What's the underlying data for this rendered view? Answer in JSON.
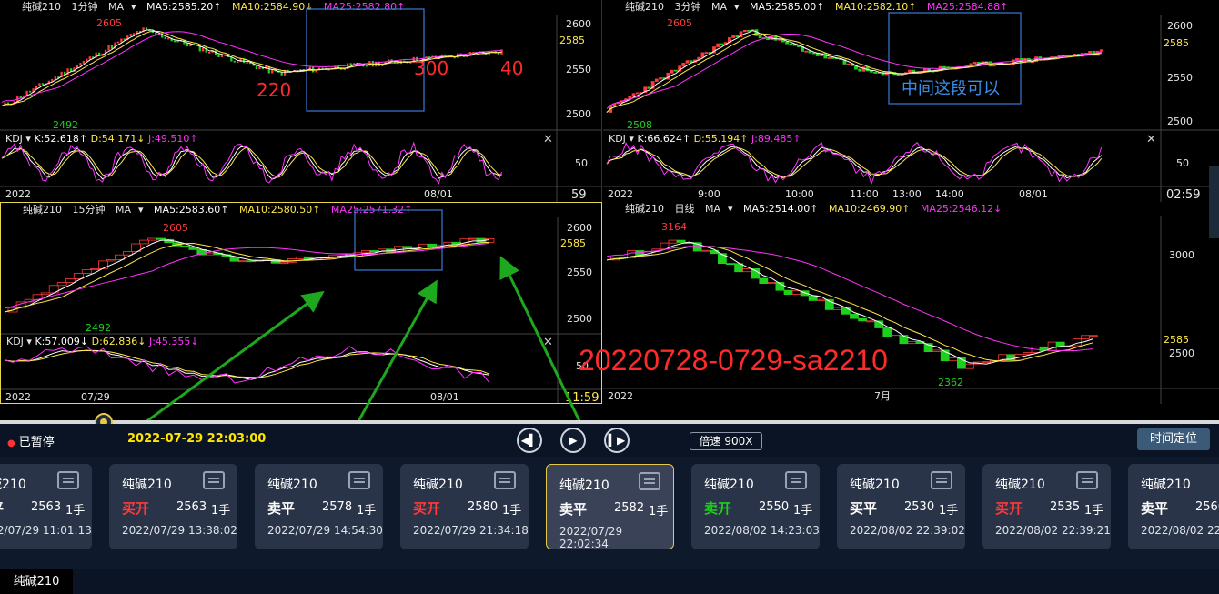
{
  "panels": {
    "p1": {
      "symbol": "纯碱210",
      "period": "1分钟",
      "ma": "MA",
      "ma5": "MA5:2585.20↑",
      "ma10": "MA10:2584.90↓",
      "ma25": "MA25:2582.80↑",
      "y_ticks": [
        "2600",
        "2585",
        "2550",
        "2500"
      ],
      "kdj": "KDJ",
      "k": "K:52.618↑",
      "d": "D:54.171↓",
      "j": "J:49.510↑",
      "kdj_tick": "50",
      "x_ticks": [
        "2022",
        "08/01"
      ],
      "corner": "59",
      "hi": "2605",
      "lo": "2492",
      "notes": [
        "220",
        "300",
        "40"
      ]
    },
    "p2": {
      "symbol": "纯碱210",
      "period": "3分钟",
      "ma": "MA",
      "ma5": "MA5:2585.00↑",
      "ma10": "MA10:2582.10↑",
      "ma25": "MA25:2584.88↑",
      "y_ticks": [
        "2600",
        "2585",
        "2550",
        "2500"
      ],
      "kdj": "KDJ",
      "k": "K:66.624↑",
      "d": "D:55.194↑",
      "j": "J:89.485↑",
      "kdj_tick": "50",
      "x_ticks": [
        "2022",
        "9:00",
        "10:00",
        "11:00",
        "13:00",
        "14:00",
        "08/01"
      ],
      "corner": "02:59",
      "hi": "2605",
      "lo": "2508",
      "note": "中间这段可以"
    },
    "p3": {
      "symbol": "纯碱210",
      "period": "15分钟",
      "ma": "MA",
      "ma5": "MA5:2583.60↑",
      "ma10": "MA10:2580.50↑",
      "ma25": "MA25:2571.32↑",
      "y_ticks": [
        "2600",
        "2585",
        "2550",
        "2500"
      ],
      "kdj": "KDJ",
      "k": "K:57.009↓",
      "d": "D:62.836↓",
      "j": "J:45.355↓",
      "kdj_tick": "50",
      "x_ticks": [
        "2022",
        "07/29",
        "08/01"
      ],
      "corner": "11:59",
      "hi": "2605",
      "lo": "2492"
    },
    "p4": {
      "symbol": "纯碱210",
      "period": "日线",
      "ma": "MA",
      "ma5": "MA5:2514.00↑",
      "ma10": "MA10:2469.90↑",
      "ma25": "MA25:2546.12↓",
      "y_ticks": [
        "3000",
        "2585",
        "2500"
      ],
      "x_ticks": [
        "2022",
        "7月"
      ],
      "hi": "3164",
      "lo": "2362"
    }
  },
  "watermark": "20220728-0729-sa2210",
  "controls": {
    "status": "已暂停",
    "current_time": "2022-07-29 22:03:00",
    "speed": "倍速 900X",
    "locate": "时间定位"
  },
  "trades": [
    {
      "symbol": "纯碱210",
      "action": "卖平",
      "price": "2563",
      "lot": "1手",
      "time": "2022/07/29 11:01:13",
      "color": "white"
    },
    {
      "symbol": "纯碱210",
      "action": "买开",
      "price": "2563",
      "lot": "1手",
      "time": "2022/07/29 13:38:02",
      "color": "red"
    },
    {
      "symbol": "纯碱210",
      "action": "卖平",
      "price": "2578",
      "lot": "1手",
      "time": "2022/07/29 14:54:30",
      "color": "white"
    },
    {
      "symbol": "纯碱210",
      "action": "买开",
      "price": "2580",
      "lot": "1手",
      "time": "2022/07/29 21:34:18",
      "color": "red"
    },
    {
      "symbol": "纯碱210",
      "action": "卖平",
      "price": "2582",
      "lot": "1手",
      "time": "2022/07/29 22:02:34",
      "color": "white"
    },
    {
      "symbol": "纯碱210",
      "action": "卖开",
      "price": "2550",
      "lot": "1手",
      "time": "2022/08/02 14:23:03",
      "color": "green"
    },
    {
      "symbol": "纯碱210",
      "action": "买平",
      "price": "2530",
      "lot": "1手",
      "time": "2022/08/02 22:39:02",
      "color": "white"
    },
    {
      "symbol": "纯碱210",
      "action": "买开",
      "price": "2535",
      "lot": "1手",
      "time": "2022/08/02 22:39:21",
      "color": "red"
    },
    {
      "symbol": "纯碱210",
      "action": "卖平",
      "price": "2560",
      "lot": "1手",
      "time": "2022/08/02 22:39:21",
      "color": "white"
    }
  ],
  "footer": {
    "tab": "纯碱210"
  },
  "colors": {
    "up": "#ff3a3a",
    "down": "#1ed01e",
    "ma5": "#ffffff",
    "ma10": "#ffe84a",
    "ma25": "#ff33ff",
    "box": "#3a7bd5",
    "arrow": "#1ea81e"
  }
}
